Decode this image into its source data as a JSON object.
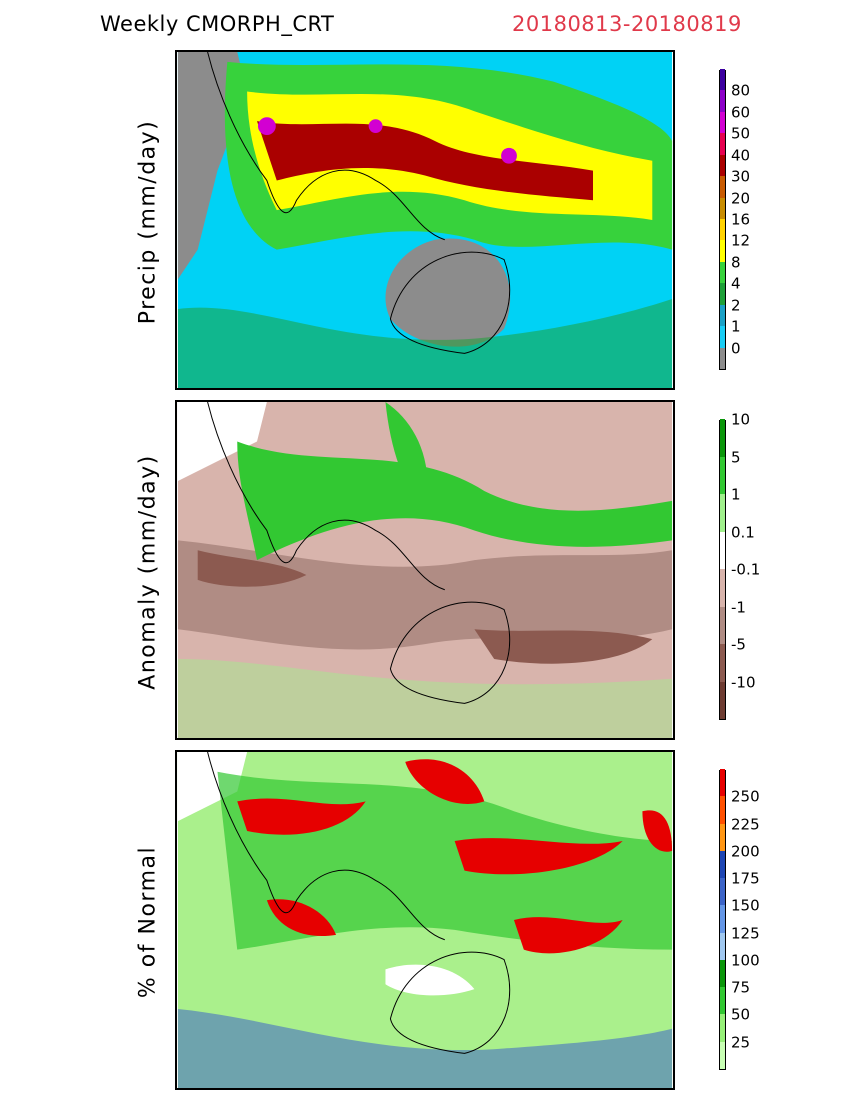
{
  "header": {
    "title": "Weekly CMORPH_CRT",
    "date_range": "20180813-20180819",
    "date_color": "#e0394a"
  },
  "panels": [
    {
      "id": "precip",
      "ylabel": "Precip (mm/day)",
      "background": "#00d2f5",
      "colorbar_colors": [
        "#8c8c8c",
        "#19cdf5",
        "#1aa1c6",
        "#1ea038",
        "#37d23c",
        "#ffff00",
        "#ffd200",
        "#c88c00",
        "#c85a00",
        "#aa0000",
        "#e60050",
        "#d200d2",
        "#8c00c8",
        "#3c00a0"
      ],
      "tick_labels": [
        "0",
        "1",
        "2",
        "4",
        "8",
        "12",
        "16",
        "20",
        "30",
        "40",
        "50",
        "60",
        "80"
      ],
      "blobs": [
        {
          "color": "#8c8c8c",
          "shape": "land-dry-west"
        },
        {
          "color": "#8c8c8c",
          "shape": "australia-dry"
        },
        {
          "color": "#37d23c",
          "shape": "monsoon-band"
        },
        {
          "color": "#ffff00",
          "shape": "monsoon-core"
        },
        {
          "color": "#aa0000",
          "shape": "monsoon-peak"
        },
        {
          "color": "#d200d2",
          "shape": "extreme-spots"
        }
      ]
    },
    {
      "id": "anomaly",
      "ylabel": "Anomaly (mm/day)",
      "background": "#d8b4ac",
      "colorbar_colors": [
        "#6e3c32",
        "#8c5a50",
        "#b08c84",
        "#d8b4ac",
        "#ffffff",
        "#a0f08c",
        "#32c832",
        "#0a960a"
      ],
      "tick_labels": [
        "-10",
        "-5",
        "-1",
        "-0.1",
        "0.1",
        "1",
        "5",
        "10"
      ],
      "blobs": [
        {
          "color": "#ffffff",
          "shape": "white-northwest"
        },
        {
          "color": "#b08c84",
          "shape": "dry-band"
        },
        {
          "color": "#32c832",
          "shape": "wet-band"
        },
        {
          "color": "#8c5a50",
          "shape": "very-dry"
        }
      ]
    },
    {
      "id": "percent",
      "ylabel": "% of Normal",
      "background": "#aaf08c",
      "colorbar_colors": [
        "#c8ffb4",
        "#96f078",
        "#32c832",
        "#0a960a",
        "#a0c8f0",
        "#6496e6",
        "#3c64c8",
        "#1e46b4",
        "#ff9614",
        "#ff5000",
        "#e60000"
      ],
      "tick_labels": [
        "25",
        "50",
        "75",
        "100",
        "125",
        "150",
        "175",
        "200",
        "225",
        "250"
      ],
      "blobs": [
        {
          "color": "#ffffff",
          "shape": "white-northwest"
        },
        {
          "color": "#32c832",
          "shape": "green-mix"
        },
        {
          "color": "#3c64c8",
          "shape": "blue-fringe"
        },
        {
          "color": "#e60000",
          "shape": "red-spots"
        }
      ]
    }
  ]
}
